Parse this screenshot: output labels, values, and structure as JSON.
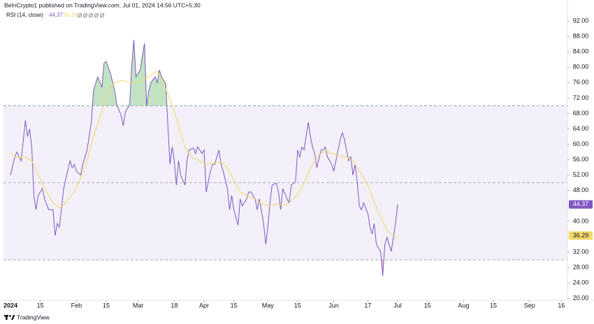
{
  "header": {
    "text": "BeInCrypto1 published on TradingView.com, Jul 01, 2024 14:56 UTC+5:30"
  },
  "footer": {
    "brand": "TradingView"
  },
  "chart_data": {
    "type": "line",
    "title": "RSI (14, close)",
    "series": [
      {
        "color": "#7e57c2",
        "x": [
          "2024-01-01",
          "2024-01-03",
          "2024-01-04",
          "2024-01-06",
          "2024-01-08",
          "2024-01-09",
          "2024-01-10",
          "2024-01-11",
          "2024-01-12",
          "2024-01-13",
          "2024-01-14",
          "2024-01-16",
          "2024-01-17",
          "2024-01-19",
          "2024-01-21",
          "2024-01-22",
          "2024-01-23",
          "2024-01-24",
          "2024-01-26",
          "2024-01-27",
          "2024-01-29",
          "2024-01-30",
          "2024-01-31",
          "2024-02-01",
          "2024-02-03",
          "2024-02-04",
          "2024-02-06",
          "2024-02-08",
          "2024-02-09",
          "2024-02-11",
          "2024-02-13",
          "2024-02-14",
          "2024-02-15",
          "2024-02-17",
          "2024-02-19",
          "2024-02-20",
          "2024-02-22",
          "2024-02-23",
          "2024-02-24",
          "2024-02-26",
          "2024-02-27",
          "2024-02-28",
          "2024-02-29",
          "2024-03-02",
          "2024-03-03",
          "2024-03-04",
          "2024-03-05",
          "2024-03-06",
          "2024-03-07",
          "2024-03-09",
          "2024-03-10",
          "2024-03-11",
          "2024-03-12",
          "2024-03-14",
          "2024-03-15",
          "2024-03-16",
          "2024-03-17",
          "2024-03-18",
          "2024-03-19",
          "2024-03-20",
          "2024-03-21",
          "2024-03-23",
          "2024-03-24",
          "2024-03-25",
          "2024-03-27",
          "2024-03-28",
          "2024-03-29",
          "2024-03-31",
          "2024-04-01",
          "2024-04-02",
          "2024-04-04",
          "2024-04-05",
          "2024-04-06",
          "2024-04-08",
          "2024-04-09",
          "2024-04-10",
          "2024-04-12",
          "2024-04-13",
          "2024-04-14",
          "2024-04-15",
          "2024-04-17",
          "2024-04-18",
          "2024-04-19",
          "2024-04-21",
          "2024-04-22",
          "2024-04-23",
          "2024-04-25",
          "2024-04-26",
          "2024-04-27",
          "2024-04-29",
          "2024-04-30",
          "2024-05-01",
          "2024-05-02",
          "2024-05-03",
          "2024-05-05",
          "2024-05-06",
          "2024-05-07",
          "2024-05-08",
          "2024-05-10",
          "2024-05-11",
          "2024-05-12",
          "2024-05-14",
          "2024-05-15",
          "2024-05-16",
          "2024-05-17",
          "2024-05-18",
          "2024-05-20",
          "2024-05-21",
          "2024-05-22",
          "2024-05-23",
          "2024-05-24",
          "2024-05-26",
          "2024-05-27",
          "2024-05-28",
          "2024-05-29",
          "2024-05-31",
          "2024-06-01",
          "2024-06-02",
          "2024-06-04",
          "2024-06-05",
          "2024-06-06",
          "2024-06-08",
          "2024-06-09",
          "2024-06-10",
          "2024-06-11",
          "2024-06-12",
          "2024-06-13",
          "2024-06-14",
          "2024-06-15",
          "2024-06-17",
          "2024-06-18",
          "2024-06-19",
          "2024-06-20",
          "2024-06-21",
          "2024-06-23",
          "2024-06-24",
          "2024-06-25",
          "2024-06-26",
          "2024-06-27",
          "2024-06-28",
          "2024-06-30",
          "2024-07-01"
        ],
        "values": [
          52,
          56.6,
          58,
          55.7,
          66.2,
          62,
          63.9,
          59.3,
          46.7,
          43,
          46.7,
          48.5,
          45.8,
          43,
          43,
          36.3,
          39.4,
          38.5,
          48.5,
          51,
          55.7,
          53.9,
          54.8,
          53,
          52,
          54.8,
          58.5,
          65.7,
          73.9,
          77.5,
          74.8,
          81.1,
          81.5,
          78.4,
          73.9,
          70.2,
          67.5,
          64.8,
          68.4,
          70.2,
          80.2,
          87.1,
          77.5,
          79.3,
          82.9,
          86.2,
          69.9,
          73.9,
          76,
          77.5,
          76,
          79.3,
          77.5,
          75.7,
          64.8,
          54.8,
          59.3,
          55.7,
          49.4,
          55.7,
          52,
          49.4,
          55.7,
          58.5,
          59,
          57.6,
          59.3,
          57.6,
          58.5,
          47.6,
          53,
          54.8,
          54.8,
          58.5,
          54.8,
          53,
          48.5,
          43,
          46.7,
          43,
          39,
          45.8,
          44,
          45.8,
          47.6,
          47.6,
          45.8,
          43,
          45.8,
          39.4,
          34,
          38.5,
          44.8,
          49.4,
          49.9,
          47.6,
          43,
          48.5,
          45.8,
          44.8,
          49.4,
          50.3,
          58.5,
          56.7,
          59.3,
          58.5,
          65.7,
          62,
          59.3,
          57.6,
          53.9,
          58.5,
          58.5,
          59.3,
          56.7,
          54.8,
          53,
          55.7,
          61.2,
          63,
          61.2,
          55.7,
          56.7,
          52,
          54.8,
          50.3,
          44,
          43,
          44.8,
          42.1,
          38.5,
          36.7,
          39.4,
          34,
          32.2,
          25.8,
          34,
          35.8,
          34,
          32.2,
          39.4,
          44.37
        ]
      },
      {
        "color": "#f3d96b",
        "x": [
          "2024-01-01",
          "2024-01-04",
          "2024-01-08",
          "2024-01-11",
          "2024-01-14",
          "2024-01-17",
          "2024-01-21",
          "2024-01-24",
          "2024-01-27",
          "2024-01-31",
          "2024-02-03",
          "2024-02-06",
          "2024-02-09",
          "2024-02-13",
          "2024-02-16",
          "2024-02-19",
          "2024-02-23",
          "2024-02-26",
          "2024-02-29",
          "2024-03-03",
          "2024-03-07",
          "2024-03-10",
          "2024-03-13",
          "2024-03-17",
          "2024-03-20",
          "2024-03-23",
          "2024-03-26",
          "2024-03-30",
          "2024-04-02",
          "2024-04-05",
          "2024-04-09",
          "2024-04-12",
          "2024-04-15",
          "2024-04-18",
          "2024-04-22",
          "2024-04-25",
          "2024-04-28",
          "2024-05-02",
          "2024-05-05",
          "2024-05-08",
          "2024-05-11",
          "2024-05-15",
          "2024-05-18",
          "2024-05-21",
          "2024-05-25",
          "2024-05-28",
          "2024-05-31",
          "2024-06-03",
          "2024-06-07",
          "2024-06-10",
          "2024-06-13",
          "2024-06-17",
          "2024-06-20",
          "2024-06-23",
          "2024-06-26",
          "2024-06-30",
          "2024-07-01"
        ],
        "values": [
          57.6,
          56.6,
          56.6,
          55.7,
          52,
          48.5,
          44.8,
          43.4,
          44.8,
          47.6,
          51.2,
          55.7,
          62,
          68.4,
          73.9,
          76,
          76.6,
          76,
          76,
          76.6,
          77.9,
          79,
          75.7,
          70.2,
          64.8,
          59.3,
          56.6,
          55.7,
          54.8,
          55.3,
          55.3,
          53.9,
          50.6,
          47.6,
          46.3,
          45.8,
          44.5,
          44,
          44.5,
          44,
          44.8,
          47,
          49.9,
          53.9,
          57.2,
          58.4,
          57.6,
          57.2,
          56.6,
          55.7,
          53,
          49.4,
          44.8,
          41.2,
          37.6,
          35.8,
          36.29
        ]
      }
    ],
    "xlim": [
      "2024-01-01",
      "2024-09-19"
    ],
    "xticks": [
      {
        "value": "2024-01-01",
        "label": "2024"
      },
      {
        "value": "2024-01-15",
        "label": "15"
      },
      {
        "value": "2024-02-01",
        "label": "Feb"
      },
      {
        "value": "2024-02-15",
        "label": "15"
      },
      {
        "value": "2024-03-01",
        "label": "Mar"
      },
      {
        "value": "2024-03-18",
        "label": "18"
      },
      {
        "value": "2024-04-01",
        "label": "Apr"
      },
      {
        "value": "2024-04-15",
        "label": "15"
      },
      {
        "value": "2024-05-01",
        "label": "May"
      },
      {
        "value": "2024-05-15",
        "label": "15"
      },
      {
        "value": "2024-06-01",
        "label": "Jun"
      },
      {
        "value": "2024-06-17",
        "label": "17"
      },
      {
        "value": "2024-07-01",
        "label": "Jul"
      },
      {
        "value": "2024-07-15",
        "label": "15"
      },
      {
        "value": "2024-08-01",
        "label": "Aug"
      },
      {
        "value": "2024-08-15",
        "label": "15"
      },
      {
        "value": "2024-09-01",
        "label": "Sep"
      },
      {
        "value": "2024-09-16",
        "label": "16"
      }
    ],
    "ylim": [
      19.5,
      96
    ],
    "yticks": [
      {
        "value": 20,
        "label": "20.00"
      },
      {
        "value": 24,
        "label": "24.00"
      },
      {
        "value": 28,
        "label": "28.00"
      },
      {
        "value": 32,
        "label": "32.00"
      },
      {
        "value": 36,
        "label": "36.00"
      },
      {
        "value": 40,
        "label": "40.00"
      },
      {
        "value": 44,
        "label": "44.00"
      },
      {
        "value": 48,
        "label": "48.00"
      },
      {
        "value": 52,
        "label": "52.00"
      },
      {
        "value": 56,
        "label": "56.00"
      },
      {
        "value": 60,
        "label": "60.00"
      },
      {
        "value": 64,
        "label": "64.00"
      },
      {
        "value": 68,
        "label": "68.00"
      },
      {
        "value": 72,
        "label": "72.00"
      },
      {
        "value": 76,
        "label": "76.00"
      },
      {
        "value": 80,
        "label": "80.00"
      },
      {
        "value": 84,
        "label": "84.00"
      },
      {
        "value": 88,
        "label": "88.00"
      },
      {
        "value": 92,
        "label": "92.00"
      }
    ],
    "levels": [
      30,
      50,
      70
    ],
    "band_color": "#7e57c2",
    "overbought_color": "#4caf50",
    "oversold_color": "#f23645"
  }
}
